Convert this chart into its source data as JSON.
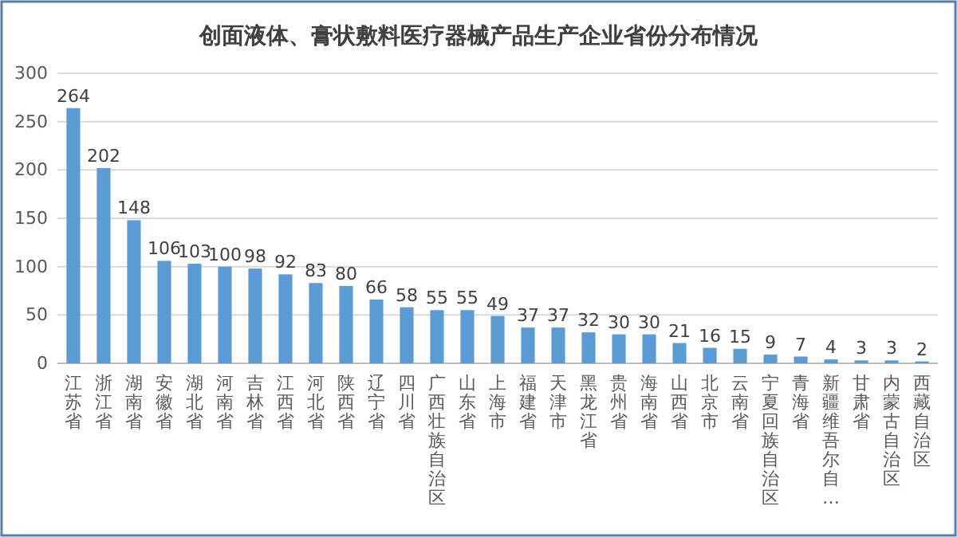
{
  "chart_data": {
    "type": "bar",
    "title": "创面液体、膏状敷料医疗器械产品生产企业省份分布情况",
    "categories": [
      "江苏省",
      "浙江省",
      "湖南省",
      "安徽省",
      "湖北省",
      "河南省",
      "吉林省",
      "江西省",
      "河北省",
      "陕西省",
      "辽宁省",
      "四川省",
      "广西壮族自治区",
      "山东省",
      "上海市",
      "福建省",
      "天津市",
      "黑龙江省",
      "贵州省",
      "海南省",
      "山西省",
      "北京市",
      "云南省",
      "宁夏回族自治区",
      "青海省",
      "新疆维吾尔自…",
      "甘肃省",
      "内蒙古自治区",
      "西藏自治区"
    ],
    "values": [
      264,
      202,
      148,
      106,
      103,
      100,
      98,
      92,
      83,
      80,
      66,
      58,
      55,
      55,
      49,
      37,
      37,
      32,
      30,
      30,
      21,
      16,
      15,
      9,
      7,
      4,
      3,
      3,
      2
    ],
    "color": "#5b9bd5",
    "ylim": [
      0,
      300
    ],
    "yticks": [
      0,
      50,
      100,
      150,
      200,
      250,
      300
    ],
    "grid": "y",
    "data_labels": true
  }
}
